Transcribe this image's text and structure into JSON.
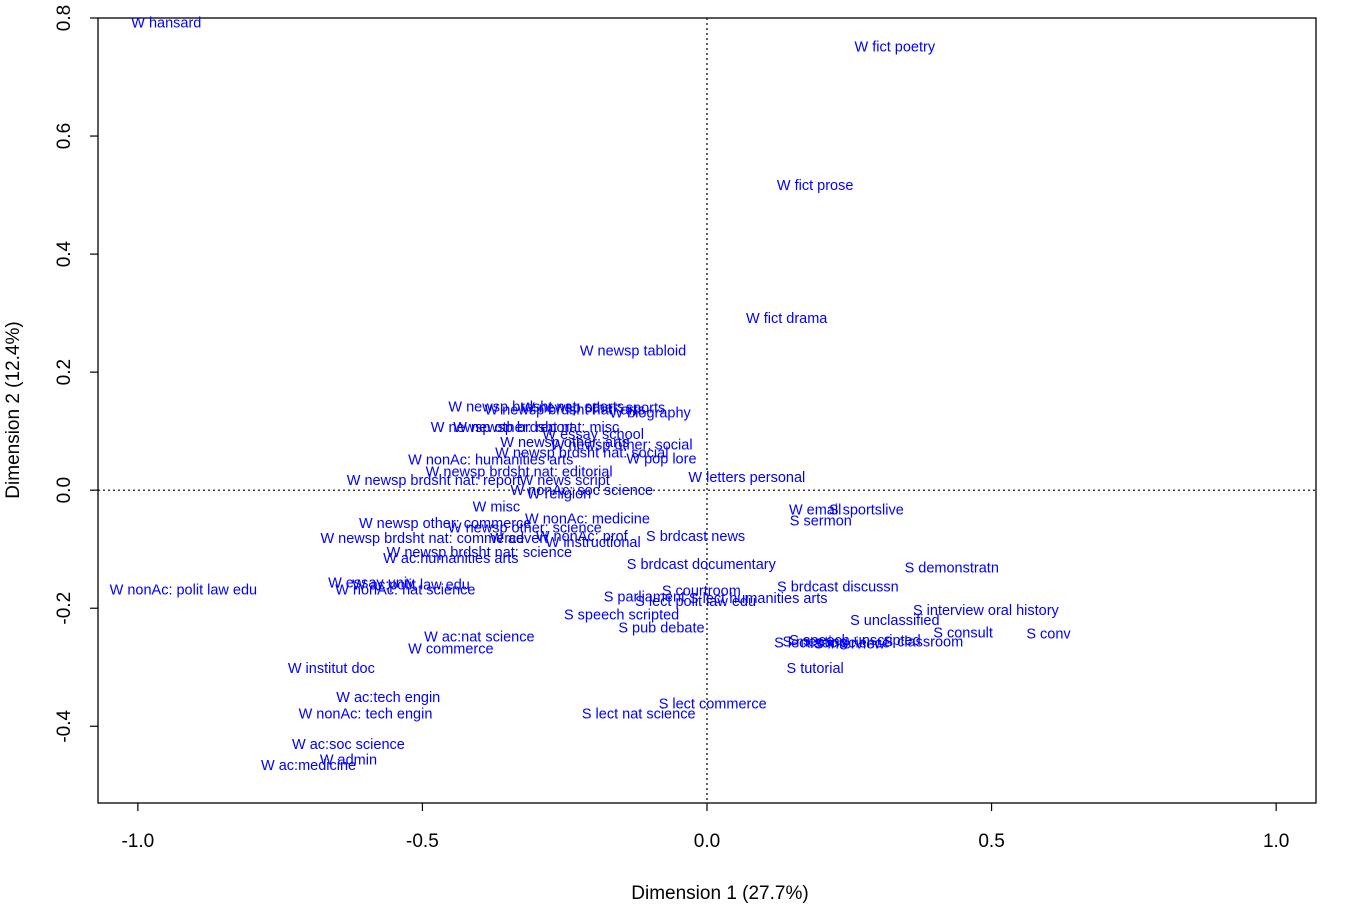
{
  "chart_data": {
    "type": "scatter",
    "xlabel": "Dimension 1 (27.7%)",
    "ylabel": "Dimension 2 (12.4%)",
    "xlim": [
      -1.07,
      1.07
    ],
    "ylim": [
      -0.53,
      0.8
    ],
    "x_ticks": [
      -1.0,
      -0.5,
      0.0,
      0.5,
      1.0
    ],
    "x_tick_labels": [
      "-1.0",
      "-0.5",
      "0.0",
      "0.5",
      "1.0"
    ],
    "y_ticks": [
      -0.4,
      -0.2,
      0.0,
      0.2,
      0.4,
      0.6,
      0.8
    ],
    "y_tick_labels": [
      "-0.4",
      "-0.2",
      "0.0",
      "0.2",
      "0.4",
      "0.6",
      "0.8"
    ],
    "reference_lines": {
      "x": 0,
      "y": 0,
      "style": "dotted"
    },
    "grid": false,
    "label_color": "#0000ff",
    "points": [
      {
        "label": "W hansard",
        "x": -0.95,
        "y": 0.79
      },
      {
        "label": "W fict poetry",
        "x": 0.33,
        "y": 0.75
      },
      {
        "label": "W fict prose",
        "x": 0.19,
        "y": 0.515
      },
      {
        "label": "W fict drama",
        "x": 0.14,
        "y": 0.29
      },
      {
        "label": "W newsp tabloid",
        "x": -0.13,
        "y": 0.235
      },
      {
        "label": "W newsp brdsht nat: sports",
        "x": -0.3,
        "y": 0.14
      },
      {
        "label": "W newsp brdsht nat: arts",
        "x": -0.25,
        "y": 0.135
      },
      {
        "label": "W newsp other: sports",
        "x": -0.2,
        "y": 0.138
      },
      {
        "label": "W biography",
        "x": -0.1,
        "y": 0.13
      },
      {
        "label": "W newsp other: report",
        "x": -0.36,
        "y": 0.105
      },
      {
        "label": "W newsp brdsht nat: misc",
        "x": -0.3,
        "y": 0.105
      },
      {
        "label": "W essay school",
        "x": -0.2,
        "y": 0.093
      },
      {
        "label": "W newsp other: arts",
        "x": -0.25,
        "y": 0.08
      },
      {
        "label": "W newsp other: social",
        "x": -0.15,
        "y": 0.075
      },
      {
        "label": "W newsp brdsht nat: social",
        "x": -0.22,
        "y": 0.062
      },
      {
        "label": "W nonAc: humanities arts",
        "x": -0.38,
        "y": 0.05
      },
      {
        "label": "W pop lore",
        "x": -0.08,
        "y": 0.052
      },
      {
        "label": "W newsp brdsht nat: editorial",
        "x": -0.33,
        "y": 0.03
      },
      {
        "label": "W letters personal",
        "x": 0.07,
        "y": 0.02
      },
      {
        "label": "W newsp brdsht nat: report",
        "x": -0.48,
        "y": 0.015
      },
      {
        "label": "W news script",
        "x": -0.25,
        "y": 0.015
      },
      {
        "label": "W nonAc: soc science",
        "x": -0.22,
        "y": -0.002
      },
      {
        "label": "W religion",
        "x": -0.26,
        "y": -0.008
      },
      {
        "label": "W misc",
        "x": -0.37,
        "y": -0.03
      },
      {
        "label": "W email",
        "x": 0.19,
        "y": -0.035
      },
      {
        "label": "S sportslive",
        "x": 0.28,
        "y": -0.035
      },
      {
        "label": "S sermon",
        "x": 0.2,
        "y": -0.053
      },
      {
        "label": "W nonAc: medicine",
        "x": -0.21,
        "y": -0.05
      },
      {
        "label": "W newsp other: commerce",
        "x": -0.46,
        "y": -0.058
      },
      {
        "label": "W newsp other: science",
        "x": -0.32,
        "y": -0.065
      },
      {
        "label": "W newsp brdsht nat: commerce",
        "x": -0.5,
        "y": -0.083
      },
      {
        "label": "W advert",
        "x": -0.33,
        "y": -0.083
      },
      {
        "label": "W nonAc: prof",
        "x": -0.22,
        "y": -0.08
      },
      {
        "label": "W instructional",
        "x": -0.2,
        "y": -0.09
      },
      {
        "label": "S brdcast news",
        "x": -0.02,
        "y": -0.08
      },
      {
        "label": "W newsp brdsht nat: science",
        "x": -0.4,
        "y": -0.107
      },
      {
        "label": "W ac:humanities arts",
        "x": -0.45,
        "y": -0.117
      },
      {
        "label": "S brdcast documentary",
        "x": -0.01,
        "y": -0.127
      },
      {
        "label": "S demonstratn",
        "x": 0.43,
        "y": -0.133
      },
      {
        "label": "W nonAc: polit law edu",
        "x": -0.92,
        "y": -0.17
      },
      {
        "label": "W essay univ",
        "x": -0.59,
        "y": -0.158
      },
      {
        "label": "W ac:polit law edu",
        "x": -0.52,
        "y": -0.162
      },
      {
        "label": "W nonAc: nat science",
        "x": -0.53,
        "y": -0.17
      },
      {
        "label": "S brdcast discussn",
        "x": 0.23,
        "y": -0.165
      },
      {
        "label": "S courtroom",
        "x": -0.01,
        "y": -0.172
      },
      {
        "label": "S parliament",
        "x": -0.11,
        "y": -0.182
      },
      {
        "label": "S lect humanities arts",
        "x": 0.09,
        "y": -0.185
      },
      {
        "label": "S lect polit law edu",
        "x": -0.02,
        "y": -0.19
      },
      {
        "label": "S interview oral history",
        "x": 0.49,
        "y": -0.205
      },
      {
        "label": "S speech scripted",
        "x": -0.15,
        "y": -0.213
      },
      {
        "label": "S unclassified",
        "x": 0.33,
        "y": -0.222
      },
      {
        "label": "S pub debate",
        "x": -0.08,
        "y": -0.235
      },
      {
        "label": "S consult",
        "x": 0.45,
        "y": -0.243
      },
      {
        "label": "S conv",
        "x": 0.6,
        "y": -0.245
      },
      {
        "label": "S meeting",
        "x": 0.19,
        "y": -0.258
      },
      {
        "label": "S speech unscripted",
        "x": 0.26,
        "y": -0.256
      },
      {
        "label": "S interview",
        "x": 0.25,
        "y": -0.262
      },
      {
        "label": "S lect soc science",
        "x": 0.22,
        "y": -0.26
      },
      {
        "label": "S classroom",
        "x": 0.38,
        "y": -0.258
      },
      {
        "label": "W ac:nat science",
        "x": -0.4,
        "y": -0.25
      },
      {
        "label": "W commerce",
        "x": -0.45,
        "y": -0.27
      },
      {
        "label": "W institut doc",
        "x": -0.66,
        "y": -0.303
      },
      {
        "label": "S tutorial",
        "x": 0.19,
        "y": -0.303
      },
      {
        "label": "W ac:tech engin",
        "x": -0.56,
        "y": -0.352
      },
      {
        "label": "S lect commerce",
        "x": 0.01,
        "y": -0.363
      },
      {
        "label": "W nonAc: tech engin",
        "x": -0.6,
        "y": -0.38
      },
      {
        "label": "S lect nat science",
        "x": -0.12,
        "y": -0.38
      },
      {
        "label": "W ac:soc science",
        "x": -0.63,
        "y": -0.432
      },
      {
        "label": "W admin",
        "x": -0.63,
        "y": -0.458
      },
      {
        "label": "W ac:medicine",
        "x": -0.7,
        "y": -0.468
      }
    ]
  }
}
